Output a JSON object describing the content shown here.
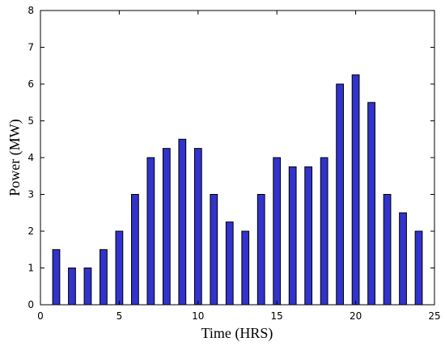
{
  "chart_data": {
    "type": "bar",
    "x": [
      1,
      2,
      3,
      4,
      5,
      6,
      7,
      8,
      9,
      10,
      11,
      12,
      13,
      14,
      15,
      16,
      17,
      18,
      19,
      20,
      21,
      22,
      23,
      24
    ],
    "values": [
      1.5,
      1,
      1,
      1.5,
      2,
      3,
      4,
      4.25,
      4.5,
      4.25,
      3,
      2.25,
      2,
      3,
      4,
      3.75,
      3.75,
      4,
      6,
      6.25,
      5.5,
      3,
      2.5,
      2
    ],
    "color": "#3232cc",
    "x_label": "Time (HRS)",
    "y_label": "Power (MW)",
    "xlim": [
      0,
      25
    ],
    "xticks": [
      0,
      5,
      10,
      15,
      20,
      25
    ],
    "ylim": [
      0,
      8
    ],
    "yticks": [
      0,
      1,
      2,
      3,
      4,
      5,
      6,
      7,
      8
    ]
  }
}
